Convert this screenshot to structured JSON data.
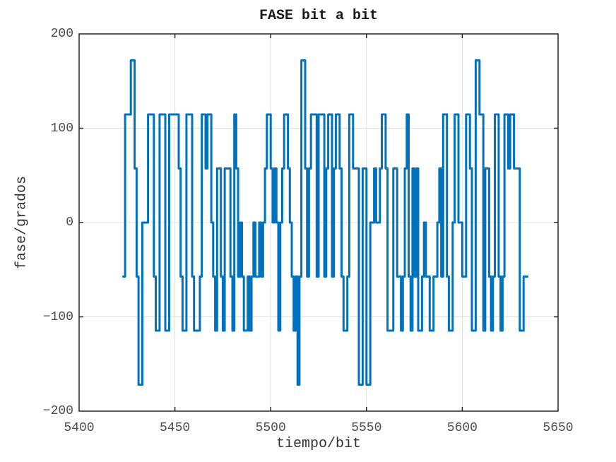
{
  "figure": {
    "title": "FASE bit a bit",
    "xlabel": "tiempo/bit",
    "ylabel": "fase/grados"
  },
  "axes": {
    "xlim": [
      5400,
      5650
    ],
    "ylim": [
      -200,
      200
    ],
    "x_ticks": [
      5400,
      5450,
      5500,
      5550,
      5600,
      5650
    ],
    "x_tick_labels": [
      "5400",
      "5450",
      "5500",
      "5550",
      "5600",
      "5650"
    ],
    "y_ticks": [
      -200,
      -100,
      0,
      100,
      200
    ],
    "y_tick_labels": [
      "−200",
      "−100",
      "0",
      "100",
      "200"
    ],
    "grid": true
  },
  "colors": {
    "line": "#0072BD",
    "axis": "#262626",
    "tick_label": "#4d4d4d",
    "label": "#333333",
    "grid": "#e0e0e0",
    "background": "#ffffff"
  },
  "chart_data": {
    "type": "line",
    "style": "stairs",
    "title": "FASE bit a bit",
    "xlabel": "tiempo/bit",
    "ylabel": "fase/grados",
    "xlim": [
      5400,
      5650
    ],
    "ylim": [
      -200,
      200
    ],
    "grid": true,
    "legend": false,
    "phase_levels_deg": [
      -171.9,
      -114.6,
      -57.3,
      0,
      57.3,
      114.6,
      171.9
    ],
    "series": [
      {
        "name": "fase",
        "color": "#0072BD",
        "t_start": 5423,
        "dt": 1,
        "values_deg": [
          -57.3,
          114.6,
          114.6,
          114.6,
          171.9,
          171.9,
          57.3,
          -57.3,
          -171.9,
          -171.9,
          0,
          0,
          0,
          114.6,
          114.6,
          114.6,
          -57.3,
          -114.6,
          -114.6,
          114.6,
          114.6,
          114.6,
          -114.6,
          -114.6,
          114.6,
          114.6,
          114.6,
          114.6,
          114.6,
          57.3,
          -57.3,
          -114.6,
          -114.6,
          114.6,
          114.6,
          114.6,
          -57.3,
          -114.6,
          -114.6,
          -114.6,
          -57.3,
          114.6,
          114.6,
          57.3,
          114.6,
          114.6,
          0,
          -57.3,
          -114.6,
          57.3,
          57.3,
          -57.3,
          -114.6,
          57.3,
          57.3,
          57.3,
          -57.3,
          -114.6,
          114.6,
          57.3,
          -57.3,
          0,
          -57.3,
          -114.6,
          -114.6,
          -57.3,
          -114.6,
          -57.3,
          0,
          -57.3,
          -57.3,
          0,
          -57.3,
          0,
          57.3,
          114.6,
          114.6,
          57.3,
          0,
          57.3,
          0,
          -114.6,
          0,
          57.3,
          114.6,
          114.6,
          57.3,
          0,
          -57.3,
          -114.6,
          -57.3,
          -171.9,
          -57.3,
          171.9,
          171.9,
          57.3,
          -57.3,
          57.3,
          114.6,
          114.6,
          114.6,
          -57.3,
          114.6,
          114.6,
          114.6,
          -57.3,
          57.3,
          114.6,
          114.6,
          -57.3,
          57.3,
          114.6,
          114.6,
          57.3,
          -57.3,
          -114.6,
          -114.6,
          -57.3,
          114.6,
          114.6,
          57.3,
          57.3,
          57.3,
          -171.9,
          -171.9,
          57.3,
          57.3,
          -171.9,
          -171.9,
          0,
          0,
          57.3,
          0,
          0,
          57.3,
          114.6,
          114.6,
          57.3,
          -114.6,
          -114.6,
          -114.6,
          57.3,
          57.3,
          -57.3,
          -57.3,
          -114.6,
          -57.3,
          57.3,
          114.6,
          -57.3,
          -114.6,
          57.3,
          -57.3,
          57.3,
          -114.6,
          -114.6,
          -57.3,
          0,
          -57.3,
          -57.3,
          -114.6,
          -114.6,
          -57.3,
          -57.3,
          0,
          57.3,
          -57.3,
          114.6,
          114.6,
          -57.3,
          -114.6,
          -114.6,
          0,
          114.6,
          114.6,
          0,
          0,
          -57.3,
          -57.3,
          114.6,
          114.6,
          57.3,
          -114.6,
          -114.6,
          171.9,
          171.9,
          114.6,
          114.6,
          -114.6,
          57.3,
          57.3,
          -57.3,
          -114.6,
          -57.3,
          114.6,
          114.6,
          -57.3,
          -114.6,
          -57.3,
          114.6,
          114.6,
          57.3,
          114.6,
          114.6,
          57.3,
          57.3,
          57.3,
          -114.6,
          -114.6,
          -57.3,
          -57.3
        ]
      }
    ]
  }
}
